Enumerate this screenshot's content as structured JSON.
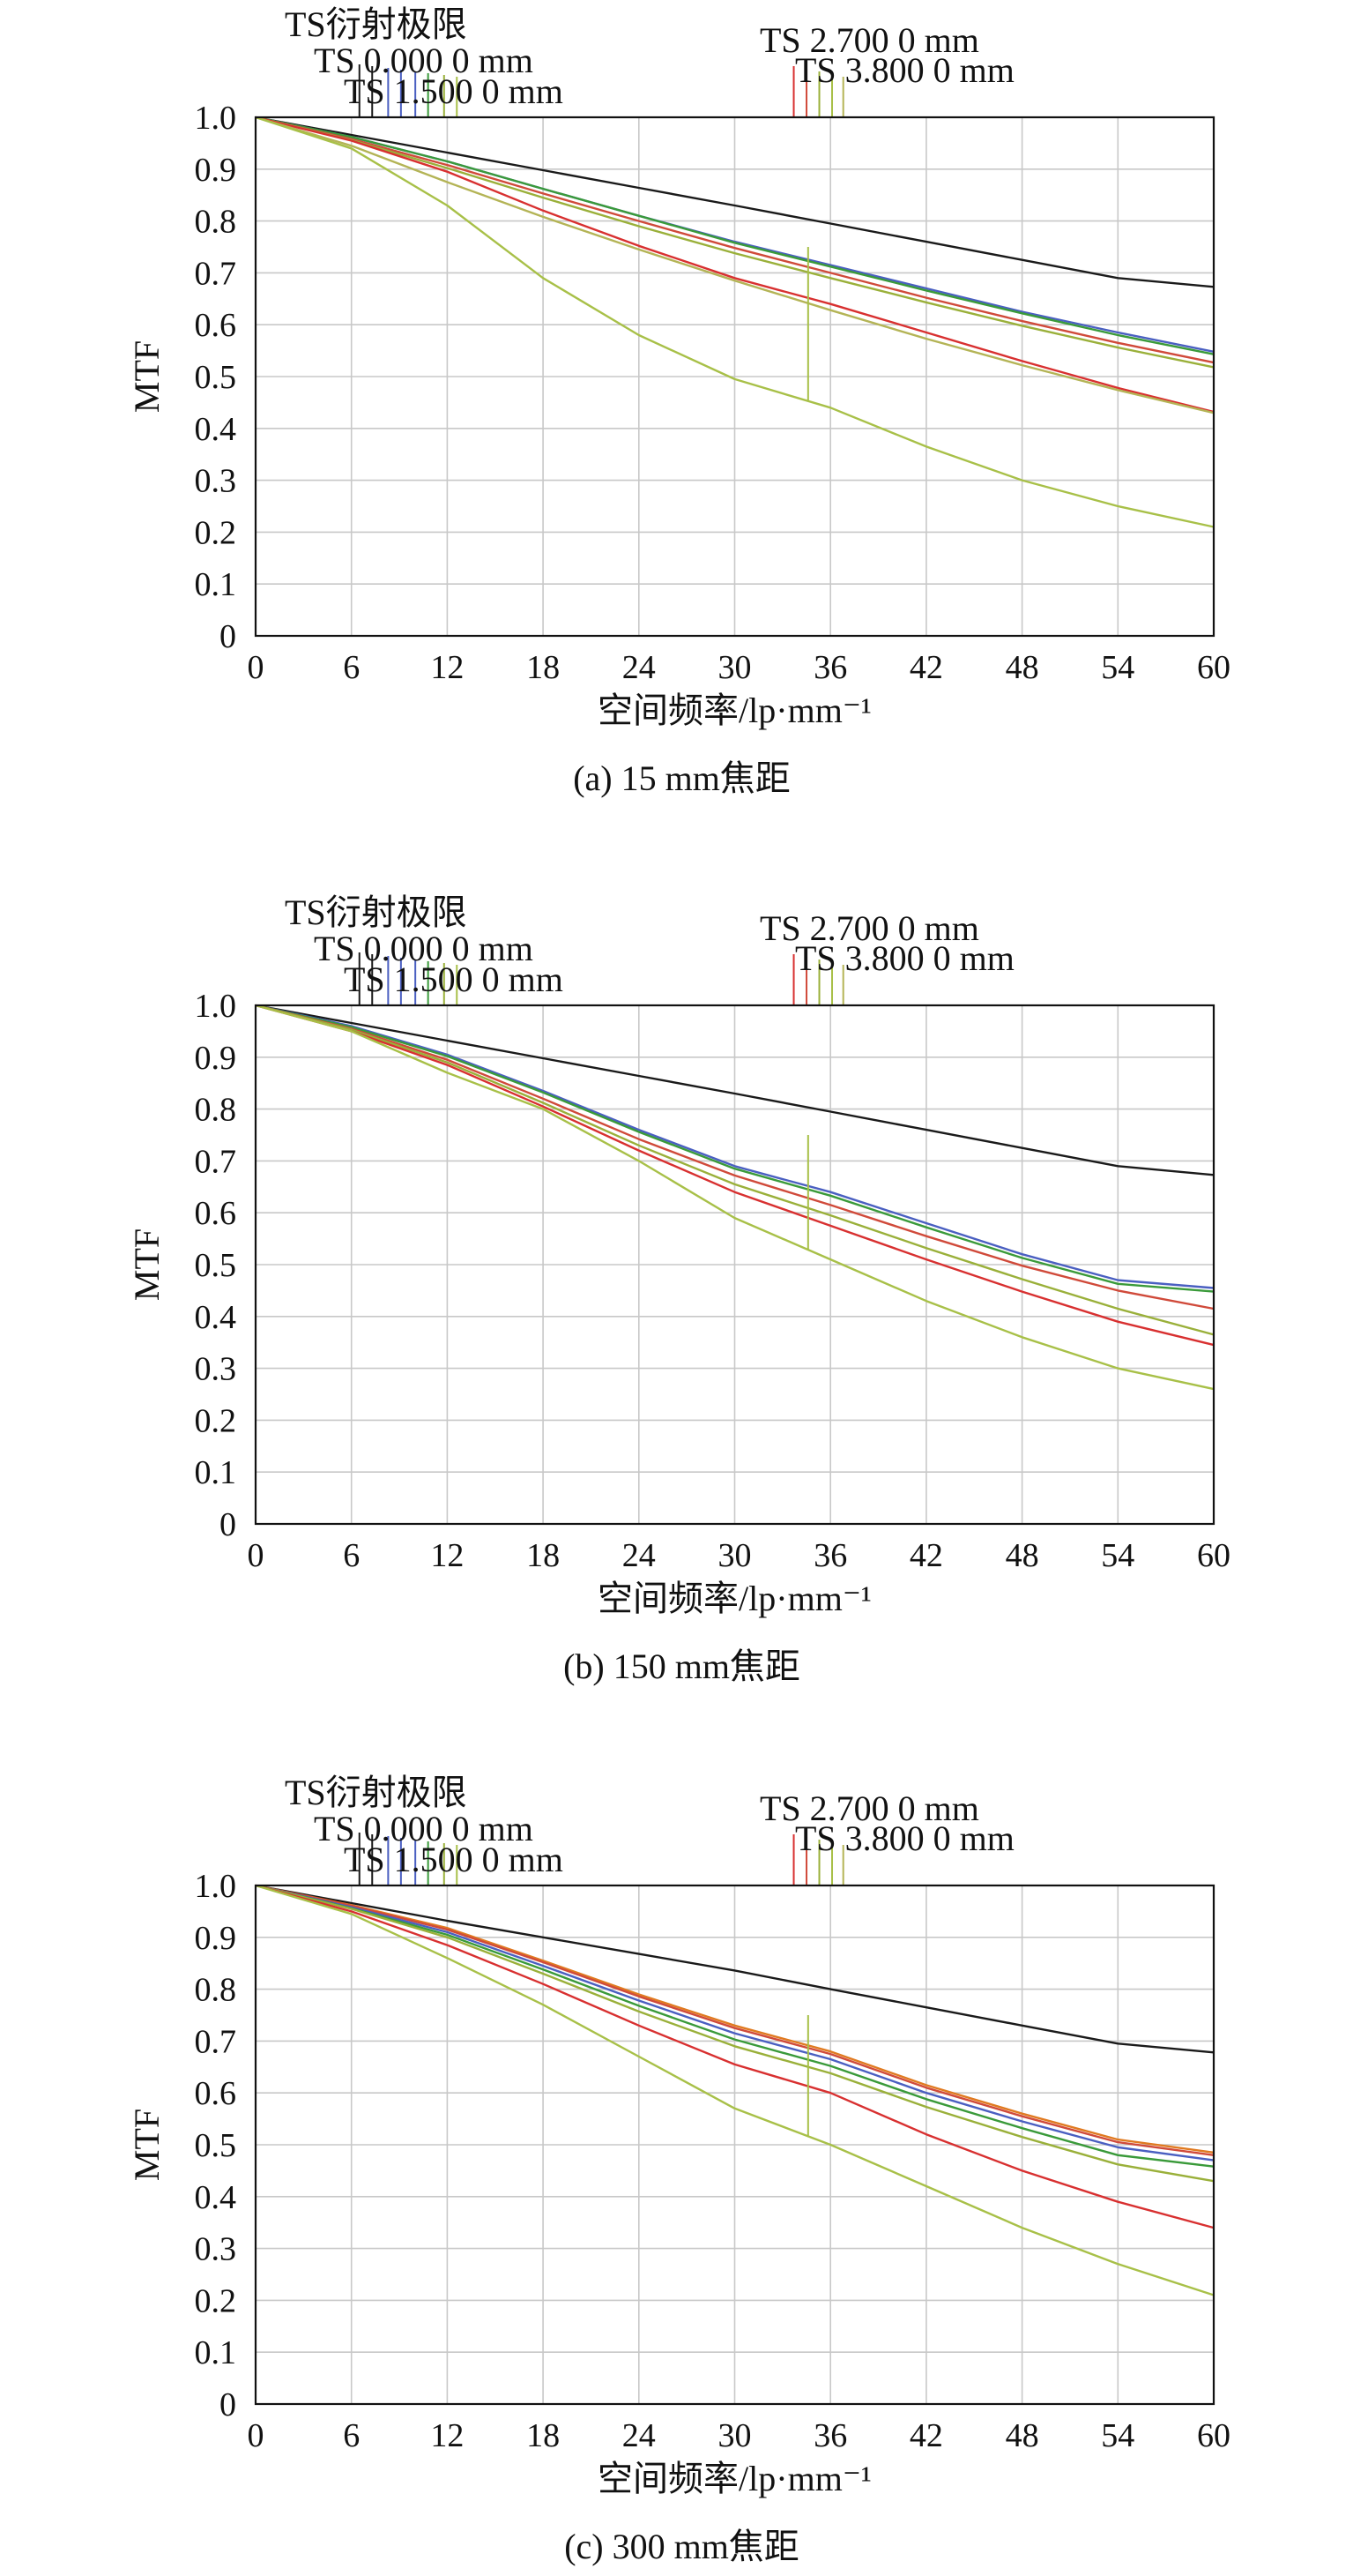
{
  "chart_data": [
    {
      "type": "line",
      "caption": "(a) 15 mm焦距",
      "xlabel": "空间频率/lp·mm⁻¹",
      "ylabel": "MTF",
      "xlim": [
        0,
        60
      ],
      "ylim": [
        0,
        1.0
      ],
      "xticks": [
        "0",
        "6",
        "12",
        "18",
        "24",
        "30",
        "36",
        "42",
        "48",
        "54",
        "60"
      ],
      "yticks": [
        "0",
        "0.1",
        "0.2",
        "0.3",
        "0.4",
        "0.5",
        "0.6",
        "0.7",
        "0.8",
        "0.9",
        "1.0"
      ],
      "grid": true,
      "legend_labels": [
        "TS衍射极限",
        "TS 0.000 0 mm",
        "TS 1.500 0 mm",
        "TS 2.700 0 mm",
        "TS 3.800 0 mm"
      ],
      "x": [
        0,
        6,
        12,
        18,
        24,
        30,
        36,
        42,
        48,
        54,
        60
      ],
      "series": [
        {
          "color": "#1a1a1a",
          "values": [
            1.0,
            0.966,
            0.932,
            0.898,
            0.864,
            0.83,
            0.795,
            0.76,
            0.725,
            0.69,
            0.673
          ]
        },
        {
          "color": "#4a5fc1",
          "values": [
            1.0,
            0.962,
            0.915,
            0.862,
            0.81,
            0.76,
            0.715,
            0.67,
            0.625,
            0.585,
            0.548
          ]
        },
        {
          "color": "#3a9a3a",
          "values": [
            1.0,
            0.962,
            0.915,
            0.862,
            0.81,
            0.758,
            0.712,
            0.666,
            0.622,
            0.58,
            0.543
          ]
        },
        {
          "color": "#d04a3a",
          "values": [
            1.0,
            0.958,
            0.908,
            0.853,
            0.8,
            0.748,
            0.7,
            0.652,
            0.607,
            0.565,
            0.527
          ]
        },
        {
          "color": "#9ab03a",
          "values": [
            1.0,
            0.956,
            0.902,
            0.845,
            0.79,
            0.738,
            0.69,
            0.643,
            0.598,
            0.556,
            0.518
          ]
        },
        {
          "color": "#d83030",
          "values": [
            1.0,
            0.955,
            0.895,
            0.82,
            0.752,
            0.69,
            0.64,
            0.585,
            0.53,
            0.478,
            0.432
          ]
        },
        {
          "color": "#b4b456",
          "values": [
            1.0,
            0.945,
            0.875,
            0.808,
            0.745,
            0.685,
            0.628,
            0.573,
            0.522,
            0.474,
            0.43
          ]
        },
        {
          "color": "#a8c048",
          "values": [
            1.0,
            0.94,
            0.83,
            0.69,
            0.58,
            0.495,
            0.44,
            0.365,
            0.3,
            0.25,
            0.21
          ]
        }
      ]
    },
    {
      "type": "line",
      "caption": "(b) 150 mm焦距",
      "xlabel": "空间频率/lp·mm⁻¹",
      "ylabel": "MTF",
      "xlim": [
        0,
        60
      ],
      "ylim": [
        0,
        1.0
      ],
      "xticks": [
        "0",
        "6",
        "12",
        "18",
        "24",
        "30",
        "36",
        "42",
        "48",
        "54",
        "60"
      ],
      "yticks": [
        "0",
        "0.1",
        "0.2",
        "0.3",
        "0.4",
        "0.5",
        "0.6",
        "0.7",
        "0.8",
        "0.9",
        "1.0"
      ],
      "grid": true,
      "legend_labels": [
        "TS衍射极限",
        "TS 0.000 0 mm",
        "TS 1.500 0 mm",
        "TS 2.700 0 mm",
        "TS 3.800 0 mm"
      ],
      "x": [
        0,
        6,
        12,
        18,
        24,
        30,
        36,
        42,
        48,
        54,
        60
      ],
      "series": [
        {
          "color": "#1a1a1a",
          "values": [
            1.0,
            0.966,
            0.932,
            0.898,
            0.864,
            0.83,
            0.795,
            0.76,
            0.725,
            0.69,
            0.673
          ]
        },
        {
          "color": "#4a5fc1",
          "values": [
            1.0,
            0.96,
            0.905,
            0.835,
            0.76,
            0.69,
            0.64,
            0.58,
            0.52,
            0.47,
            0.455
          ]
        },
        {
          "color": "#3a9a3a",
          "values": [
            1.0,
            0.958,
            0.902,
            0.832,
            0.756,
            0.685,
            0.633,
            0.572,
            0.513,
            0.463,
            0.448
          ]
        },
        {
          "color": "#d04a3a",
          "values": [
            1.0,
            0.955,
            0.895,
            0.82,
            0.742,
            0.672,
            0.615,
            0.555,
            0.498,
            0.45,
            0.415
          ]
        },
        {
          "color": "#9ab03a",
          "values": [
            1.0,
            0.953,
            0.89,
            0.812,
            0.73,
            0.655,
            0.595,
            0.532,
            0.472,
            0.415,
            0.365
          ]
        },
        {
          "color": "#d83030",
          "values": [
            1.0,
            0.95,
            0.885,
            0.805,
            0.72,
            0.64,
            0.575,
            0.51,
            0.448,
            0.39,
            0.345
          ]
        },
        {
          "color": "#a8c048",
          "values": [
            1.0,
            0.95,
            0.87,
            0.8,
            0.7,
            0.59,
            0.51,
            0.43,
            0.36,
            0.3,
            0.26
          ]
        }
      ]
    },
    {
      "type": "line",
      "caption": "(c) 300 mm焦距",
      "xlabel": "空间频率/lp·mm⁻¹",
      "ylabel": "MTF",
      "xlim": [
        0,
        60
      ],
      "ylim": [
        0,
        1.0
      ],
      "xticks": [
        "0",
        "6",
        "12",
        "18",
        "24",
        "30",
        "36",
        "42",
        "48",
        "54",
        "60"
      ],
      "yticks": [
        "0",
        "0.1",
        "0.2",
        "0.3",
        "0.4",
        "0.5",
        "0.6",
        "0.7",
        "0.8",
        "0.9",
        "1.0"
      ],
      "grid": true,
      "legend_labels": [
        "TS衍射极限",
        "TS 0.000 0 mm",
        "TS 1.500 0 mm",
        "TS 2.700 0 mm",
        "TS 3.800 0 mm"
      ],
      "x": [
        0,
        6,
        12,
        18,
        24,
        30,
        36,
        42,
        48,
        54,
        60
      ],
      "series": [
        {
          "color": "#1a1a1a",
          "values": [
            1.0,
            0.966,
            0.932,
            0.9,
            0.868,
            0.836,
            0.8,
            0.765,
            0.73,
            0.695,
            0.678
          ]
        },
        {
          "color": "#e07a20",
          "values": [
            1.0,
            0.962,
            0.918,
            0.855,
            0.79,
            0.73,
            0.68,
            0.615,
            0.56,
            0.51,
            0.485
          ]
        },
        {
          "color": "#d04a3a",
          "values": [
            1.0,
            0.961,
            0.915,
            0.852,
            0.786,
            0.725,
            0.675,
            0.61,
            0.555,
            0.505,
            0.48
          ]
        },
        {
          "color": "#4a5fc1",
          "values": [
            1.0,
            0.958,
            0.91,
            0.845,
            0.778,
            0.715,
            0.665,
            0.6,
            0.545,
            0.495,
            0.47
          ]
        },
        {
          "color": "#3a9a3a",
          "values": [
            1.0,
            0.956,
            0.905,
            0.838,
            0.768,
            0.703,
            0.652,
            0.588,
            0.532,
            0.48,
            0.458
          ]
        },
        {
          "color": "#9ab03a",
          "values": [
            1.0,
            0.955,
            0.9,
            0.83,
            0.757,
            0.69,
            0.638,
            0.573,
            0.515,
            0.462,
            0.43
          ]
        },
        {
          "color": "#d83030",
          "values": [
            1.0,
            0.95,
            0.885,
            0.81,
            0.73,
            0.655,
            0.6,
            0.52,
            0.45,
            0.39,
            0.34
          ]
        },
        {
          "color": "#a8c048",
          "values": [
            1.0,
            0.945,
            0.86,
            0.77,
            0.67,
            0.57,
            0.5,
            0.42,
            0.34,
            0.27,
            0.21
          ]
        }
      ]
    }
  ]
}
